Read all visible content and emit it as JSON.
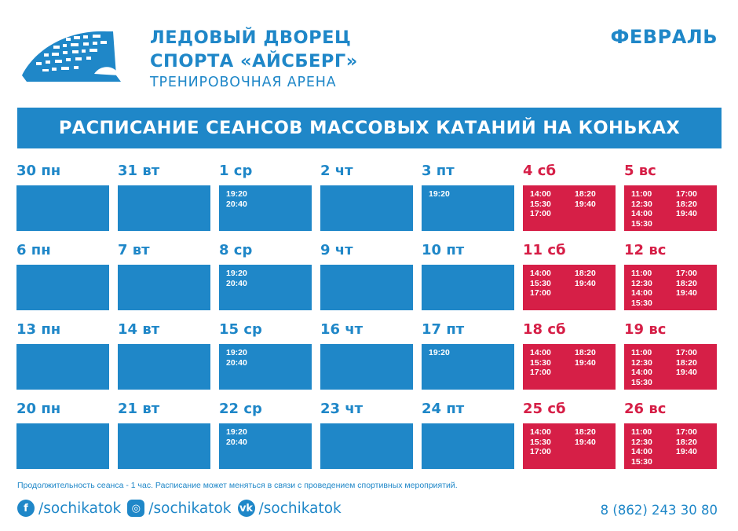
{
  "header": {
    "venue_line1": "ЛЕДОВЫЙ ДВОРЕЦ",
    "venue_line2": "СПОРТА «АЙСБЕРГ»",
    "venue_line3": "ТРЕНИРОВОЧНАЯ АРЕНА",
    "month": "ФЕВРАЛЬ"
  },
  "banner": "РАСПИСАНИЕ СЕАНСОВ МАССОВЫХ КАТАНИЙ НА КОНЬКАХ",
  "colors": {
    "accent": "#1f87c8",
    "weekend": "#d61f47",
    "text_on_box": "#ffffff"
  },
  "weeks": [
    {
      "days": [
        {
          "label": "30 пн",
          "weekend": false,
          "times": []
        },
        {
          "label": "31 вт",
          "weekend": false,
          "times": []
        },
        {
          "label": "1 ср",
          "weekend": false,
          "times": [
            "19:20",
            "20:40"
          ]
        },
        {
          "label": "2 чт",
          "weekend": false,
          "times": []
        },
        {
          "label": "3 пт",
          "weekend": false,
          "times": [
            "19:20"
          ]
        },
        {
          "label": "4 сб",
          "weekend": true,
          "times": [
            "14:00",
            "18:20",
            "15:30",
            "19:40",
            "17:00"
          ]
        },
        {
          "label": "5 вс",
          "weekend": true,
          "times": [
            "11:00",
            "17:00",
            "12:30",
            "18:20",
            "14:00",
            "19:40",
            "15:30"
          ]
        }
      ]
    },
    {
      "days": [
        {
          "label": "6 пн",
          "weekend": false,
          "times": []
        },
        {
          "label": "7 вт",
          "weekend": false,
          "times": []
        },
        {
          "label": "8 ср",
          "weekend": false,
          "times": [
            "19:20",
            "20:40"
          ]
        },
        {
          "label": "9 чт",
          "weekend": false,
          "times": []
        },
        {
          "label": "10 пт",
          "weekend": false,
          "times": []
        },
        {
          "label": "11 сб",
          "weekend": true,
          "times": [
            "14:00",
            "18:20",
            "15:30",
            "19:40",
            "17:00"
          ]
        },
        {
          "label": "12 вс",
          "weekend": true,
          "times": [
            "11:00",
            "17:00",
            "12:30",
            "18:20",
            "14:00",
            "19:40",
            "15:30"
          ]
        }
      ]
    },
    {
      "days": [
        {
          "label": "13 пн",
          "weekend": false,
          "times": []
        },
        {
          "label": "14 вт",
          "weekend": false,
          "times": []
        },
        {
          "label": "15 ср",
          "weekend": false,
          "times": [
            "19:20",
            "20:40"
          ]
        },
        {
          "label": "16 чт",
          "weekend": false,
          "times": []
        },
        {
          "label": "17 пт",
          "weekend": false,
          "times": [
            "19:20"
          ]
        },
        {
          "label": "18 сб",
          "weekend": true,
          "times": [
            "14:00",
            "18:20",
            "15:30",
            "19:40",
            "17:00"
          ]
        },
        {
          "label": "19 вс",
          "weekend": true,
          "times": [
            "11:00",
            "17:00",
            "12:30",
            "18:20",
            "14:00",
            "19:40",
            "15:30"
          ]
        }
      ]
    },
    {
      "days": [
        {
          "label": "20 пн",
          "weekend": false,
          "times": []
        },
        {
          "label": "21 вт",
          "weekend": false,
          "times": []
        },
        {
          "label": "22 ср",
          "weekend": false,
          "times": [
            "19:20",
            "20:40"
          ]
        },
        {
          "label": "23 чт",
          "weekend": false,
          "times": []
        },
        {
          "label": "24 пт",
          "weekend": false,
          "times": []
        },
        {
          "label": "25 сб",
          "weekend": true,
          "times": [
            "14:00",
            "18:20",
            "15:30",
            "19:40",
            "17:00"
          ]
        },
        {
          "label": "26 вс",
          "weekend": true,
          "times": [
            "11:00",
            "17:00",
            "12:30",
            "18:20",
            "14:00",
            "19:40",
            "15:30"
          ]
        }
      ]
    }
  ],
  "footer": {
    "note": "Продолжительность сеанса - 1 час. Расписание может меняться в связи с проведением спортивных мероприятий.",
    "social": [
      {
        "icon": "facebook-icon",
        "glyph": "f",
        "handle": "/sochikatok"
      },
      {
        "icon": "instagram-icon",
        "glyph": "◎",
        "handle": "/sochikatok"
      },
      {
        "icon": "vk-icon",
        "glyph": "vk",
        "handle": "/sochikatok"
      }
    ],
    "phone": "8 (862) 243 30 80"
  }
}
